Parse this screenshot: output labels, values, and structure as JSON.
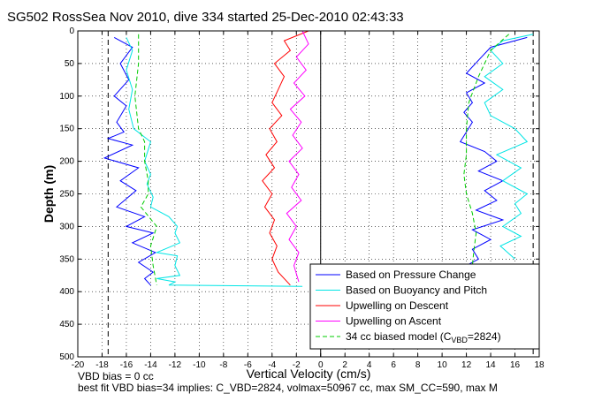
{
  "chart_data": {
    "type": "line",
    "title": "SG502 RossSea Nov 2010, dive 334 started 25-Dec-2010 02:43:33",
    "xlabel": "Vertical Velocity (cm/s)",
    "ylabel": "Depth (m)",
    "xlim": [
      -20,
      18
    ],
    "ylim": [
      0,
      500
    ],
    "y_reversed": true,
    "grid": true,
    "legend_placement": "bottom-right",
    "x_ticks": [
      -20,
      -18,
      -16,
      -14,
      -12,
      -10,
      -8,
      -6,
      -4,
      -2,
      0,
      2,
      4,
      6,
      8,
      10,
      12,
      14,
      16,
      18
    ],
    "y_ticks": [
      0,
      50,
      100,
      150,
      200,
      250,
      300,
      350,
      400,
      450,
      500
    ],
    "reference_lines": {
      "dashed_vertical_x": [
        -17.5,
        17.5
      ],
      "solid_vertical_x": [
        0
      ]
    },
    "series": [
      {
        "name": "Based on Pressure Change",
        "color": "#0000ff",
        "style": "solid",
        "segments": [
          {
            "x": [
              -17,
              -15.5,
              -16.5,
              -15.8,
              -17,
              -16,
              -16.8,
              -16.2,
              -17.5,
              -15.5,
              -17.8,
              -15,
              -16.5,
              -15.2,
              -16.8,
              -14.5,
              -16,
              -13.8,
              -15.5,
              -13.6,
              -15,
              -13.8,
              -14.5,
              -14
            ],
            "y": [
              10,
              25,
              50,
              75,
              100,
              115,
              140,
              155,
              165,
              175,
              195,
              210,
              230,
              245,
              270,
              285,
              300,
              310,
              325,
              340,
              355,
              370,
              380,
              390
            ]
          },
          {
            "x": [
              17,
              14,
              13,
              12,
              13.5,
              12,
              12.5,
              11.8,
              12.5,
              12,
              11.5,
              13.5,
              14.5,
              13,
              15,
              13.5,
              14.5,
              12.8,
              15,
              12.5,
              14,
              12.5,
              13,
              12
            ],
            "y": [
              10,
              25,
              45,
              65,
              80,
              95,
              110,
              125,
              140,
              155,
              170,
              185,
              200,
              215,
              230,
              245,
              260,
              275,
              290,
              305,
              320,
              335,
              350,
              360
            ]
          }
        ]
      },
      {
        "name": "Based on Buoyancy and Pitch",
        "color": "#00e5e5",
        "style": "solid",
        "segments": [
          {
            "x": [
              -16,
              -15.5,
              -16,
              -15.5,
              -15.8,
              -15.4,
              -14,
              -14.5,
              -14,
              -14.3,
              -13.8,
              -14,
              -12.5,
              -11.8,
              -12,
              -11.6,
              -13.5,
              -11.8,
              -12,
              -11.6,
              -13.5,
              -12,
              -12.5,
              -1.5
            ],
            "y": [
              10,
              30,
              60,
              90,
              120,
              150,
              170,
              200,
              220,
              235,
              255,
              270,
              285,
              300,
              310,
              325,
              340,
              345,
              360,
              375,
              380,
              385,
              390,
              392
            ]
          },
          {
            "x": [
              17.5,
              15,
              14,
              15,
              13.5,
              15,
              13.5,
              14,
              16,
              17,
              14.5,
              16.5,
              15,
              17,
              16,
              16.5,
              15,
              16.5,
              14.8,
              16
            ],
            "y": [
              5,
              15,
              30,
              50,
              70,
              90,
              110,
              130,
              150,
              170,
              190,
              210,
              230,
              250,
              265,
              280,
              300,
              315,
              330,
              350
            ]
          }
        ]
      },
      {
        "name": "Upwelling on Descent",
        "color": "#ff0000",
        "style": "solid",
        "segments": [
          {
            "x": [
              -1,
              -3,
              -2.5,
              -3.8,
              -3,
              -3.5,
              -4,
              -3.2,
              -4.2,
              -3.6,
              -4.5,
              -3.8,
              -4.8,
              -4,
              -4.6,
              -3.8,
              -4.2,
              -3.6,
              -4,
              -3.5,
              -2.5
            ],
            "y": [
              0,
              15,
              30,
              50,
              70,
              90,
              110,
              130,
              150,
              170,
              190,
              210,
              230,
              250,
              270,
              290,
              310,
              330,
              350,
              370,
              390
            ]
          }
        ]
      },
      {
        "name": "Upwelling on Ascent",
        "color": "#ff00ff",
        "style": "solid",
        "segments": [
          {
            "x": [
              -1.5,
              -1,
              -2,
              -1.2,
              -2.2,
              -1.3,
              -2.5,
              -1.6,
              -2.3,
              -1.5,
              -2.6,
              -1.8,
              -2.4,
              -1.6,
              -2.8,
              -2,
              -2.6,
              -1.8,
              -2.2,
              -1.8
            ],
            "y": [
              0,
              20,
              40,
              60,
              80,
              100,
              120,
              140,
              160,
              180,
              200,
              220,
              240,
              260,
              280,
              300,
              320,
              340,
              360,
              385
            ]
          }
        ]
      },
      {
        "name": "34 cc biased model (C_VBD=2824)",
        "color": "#00cc00",
        "style": "dashed",
        "segments": [
          {
            "x": [
              -15,
              -15,
              -15.3,
              -15,
              -14.5,
              -14.5,
              -14.2,
              -14.2,
              -14.8,
              -13.5,
              -14,
              -13.8,
              -13.5
            ],
            "y": [
              5,
              50,
              100,
              150,
              170,
              200,
              230,
              250,
              270,
              300,
              330,
              360,
              390
            ]
          },
          {
            "x": [
              15.5,
              14,
              13,
              12.2,
              12,
              12,
              11.8,
              12,
              12.5,
              12.8,
              12.6,
              12.5
            ],
            "y": [
              5,
              30,
              70,
              110,
              150,
              190,
              220,
              250,
              280,
              310,
              340,
              360
            ]
          }
        ]
      }
    ],
    "legend": {
      "entries": [
        {
          "label": "Based on Pressure Change",
          "color": "#0000ff",
          "style": "solid"
        },
        {
          "label": "Based on Buoyancy and Pitch",
          "color": "#00e5e5",
          "style": "solid"
        },
        {
          "label": "Upwelling on Descent",
          "color": "#ff0000",
          "style": "solid"
        },
        {
          "label": "Upwelling on Ascent",
          "color": "#ff00ff",
          "style": "solid"
        },
        {
          "label_main": "34 cc biased model (C",
          "label_sub": "VBD",
          "label_tail": "=2824)",
          "color": "#00cc00",
          "style": "dashed"
        }
      ]
    },
    "footer": {
      "line1": "VBD bias = 0 cc",
      "line2": "best fit VBD bias=34 implies: C_VBD=2824, volmax=50967 cc, max SM_CC=590, max M"
    }
  }
}
